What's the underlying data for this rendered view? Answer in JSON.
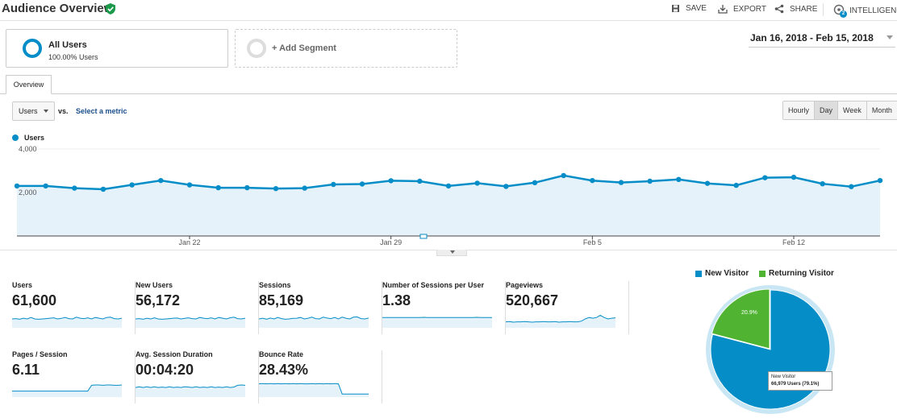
{
  "header": {
    "title": "Audience Overview",
    "actions": {
      "save": "SAVE",
      "export": "EXPORT",
      "share": "SHARE",
      "intelligence": "INTELLIGENCE",
      "intelligence_badge": "2"
    }
  },
  "segments": {
    "all_users": {
      "name": "All Users",
      "percent": "100.00% Users"
    },
    "add_segment": "+ Add Segment"
  },
  "date_range": "Jan 16, 2018 - Feb 15, 2018",
  "tabs": {
    "overview": "Overview"
  },
  "controls": {
    "metric": "Users",
    "vs": "vs.",
    "select_metric": "Select a metric",
    "periods": [
      "Hourly",
      "Day",
      "Week",
      "Month"
    ],
    "active_period": "Day"
  },
  "colors": {
    "primary": "#058dc7",
    "area_fill": "#e6f2fa",
    "returning": "#50b432"
  },
  "chart_data": {
    "type": "line",
    "series": [
      {
        "name": "Users",
        "values": [
          2300,
          2300,
          2200,
          2150,
          2350,
          2550,
          2350,
          2220,
          2220,
          2180,
          2200,
          2370,
          2390,
          2540,
          2520,
          2300,
          2430,
          2280,
          2450,
          2780,
          2550,
          2460,
          2520,
          2600,
          2420,
          2330,
          2680,
          2700,
          2400,
          2270,
          2550
        ]
      }
    ],
    "ylim": [
      0,
      4000
    ],
    "yticks": [
      "4,000",
      "2,000"
    ],
    "xtick_labels": [
      "Jan 22",
      "Jan 29",
      "Feb 5",
      "Feb 12"
    ],
    "xtick_indices": [
      6,
      13,
      20,
      27
    ],
    "grid": true
  },
  "metrics": [
    {
      "label": "Users",
      "value": "61,600",
      "spark": [
        0.5,
        0.52,
        0.48,
        0.55,
        0.5,
        0.6,
        0.5,
        0.48,
        0.5,
        0.52,
        0.55,
        0.58,
        0.5,
        0.54,
        0.6,
        0.52,
        0.5,
        0.62,
        0.55,
        0.52,
        0.58,
        0.5,
        0.6,
        0.55,
        0.5,
        0.6,
        0.62,
        0.52,
        0.5,
        0.55
      ]
    },
    {
      "label": "New Users",
      "value": "56,172",
      "spark": [
        0.5,
        0.52,
        0.48,
        0.55,
        0.5,
        0.58,
        0.5,
        0.48,
        0.5,
        0.52,
        0.55,
        0.56,
        0.5,
        0.54,
        0.58,
        0.52,
        0.5,
        0.6,
        0.55,
        0.52,
        0.58,
        0.5,
        0.6,
        0.55,
        0.5,
        0.58,
        0.62,
        0.52,
        0.5,
        0.55
      ]
    },
    {
      "label": "Sessions",
      "value": "85,169",
      "spark": [
        0.5,
        0.55,
        0.48,
        0.56,
        0.5,
        0.6,
        0.52,
        0.48,
        0.5,
        0.54,
        0.55,
        0.6,
        0.5,
        0.55,
        0.62,
        0.52,
        0.5,
        0.62,
        0.56,
        0.52,
        0.6,
        0.5,
        0.62,
        0.55,
        0.5,
        0.62,
        0.64,
        0.52,
        0.5,
        0.56
      ]
    },
    {
      "label": "Number of Sessions per User",
      "value": "1.38",
      "spark": [
        0.6,
        0.6,
        0.6,
        0.6,
        0.6,
        0.6,
        0.6,
        0.6,
        0.6,
        0.6,
        0.6,
        0.61,
        0.6,
        0.6,
        0.6,
        0.6,
        0.6,
        0.6,
        0.6,
        0.6,
        0.6,
        0.6,
        0.6,
        0.6,
        0.6,
        0.61,
        0.6,
        0.6,
        0.6,
        0.6
      ]
    },
    {
      "label": "Pageviews",
      "value": "520,667",
      "spark": [
        0.3,
        0.32,
        0.28,
        0.3,
        0.3,
        0.32,
        0.3,
        0.28,
        0.3,
        0.3,
        0.32,
        0.3,
        0.3,
        0.32,
        0.28,
        0.3,
        0.3,
        0.32,
        0.3,
        0.3,
        0.35,
        0.5,
        0.6,
        0.55,
        0.6,
        0.75,
        0.6,
        0.5,
        0.55,
        0.58
      ]
    },
    {
      "label": "Pages / Session",
      "value": "6.11",
      "spark": [
        0.3,
        0.3,
        0.3,
        0.3,
        0.3,
        0.3,
        0.3,
        0.3,
        0.3,
        0.3,
        0.3,
        0.3,
        0.3,
        0.3,
        0.3,
        0.3,
        0.3,
        0.3,
        0.3,
        0.3,
        0.3,
        0.7,
        0.72,
        0.72,
        0.7,
        0.72,
        0.72,
        0.7,
        0.7,
        0.72
      ]
    },
    {
      "label": "Avg. Session Duration",
      "value": "00:04:20",
      "spark": [
        0.55,
        0.6,
        0.55,
        0.6,
        0.55,
        0.6,
        0.55,
        0.58,
        0.55,
        0.6,
        0.55,
        0.58,
        0.55,
        0.6,
        0.58,
        0.55,
        0.6,
        0.55,
        0.58,
        0.55,
        0.6,
        0.55,
        0.58,
        0.55,
        0.6,
        0.55,
        0.58,
        0.7,
        0.72,
        0.7
      ]
    },
    {
      "label": "Bounce Rate",
      "value": "28.43%",
      "spark": [
        0.8,
        0.82,
        0.8,
        0.82,
        0.8,
        0.82,
        0.8,
        0.82,
        0.8,
        0.82,
        0.8,
        0.82,
        0.8,
        0.8,
        0.82,
        0.8,
        0.82,
        0.8,
        0.82,
        0.8,
        0.82,
        0.8,
        0.1,
        0.1,
        0.1,
        0.1,
        0.1,
        0.1,
        0.1,
        0.1
      ]
    }
  ],
  "pie": {
    "legend": [
      {
        "label": "New Visitor",
        "color": "#058dc7"
      },
      {
        "label": "Returning Visitor",
        "color": "#50b432"
      }
    ],
    "slices": [
      {
        "label": "New Visitor",
        "value": 79.1
      },
      {
        "label": "Returning Visitor",
        "value": 20.9
      }
    ],
    "slice_label": "20.9%",
    "tooltip_title": "New Visitor",
    "tooltip_value": "66,979 Users (79.1%)"
  }
}
